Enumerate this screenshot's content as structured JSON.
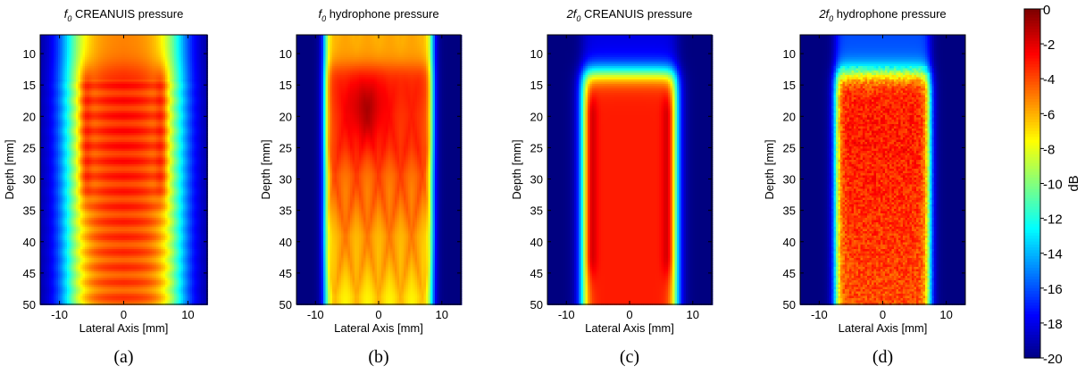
{
  "figure": {
    "shared_xlabel": "Lateral Axis [mm]",
    "shared_ylabel": "Depth [mm]"
  },
  "chart_data": [
    {
      "type": "heatmap",
      "panel_label": "(a)",
      "title_prefix": "f",
      "title_subscript": "0",
      "title_rest": " CREANUIS pressure",
      "xlabel": "Lateral Axis [mm]",
      "ylabel": "Depth [mm]",
      "xlim": [
        -13,
        13
      ],
      "ylim": [
        7,
        50
      ],
      "y_reversed": true,
      "xticks": [
        -10,
        0,
        10
      ],
      "yticks": [
        10,
        15,
        20,
        25,
        30,
        35,
        40,
        45,
        50
      ],
      "colormap": "jet",
      "clim": [
        -20,
        0
      ],
      "field": {
        "beam_halfwidth_mm": 8.5,
        "edge_softness_mm": 3.5,
        "hot_edges": true,
        "hot_edge_pos_mm": 6,
        "hot_depth_range_mm": [
          16,
          30
        ],
        "top_value_db": -5,
        "top_depth_mm": 12,
        "axial_ripples": true,
        "grating_lobes": false,
        "speckle": false,
        "core_value_db": -3,
        "deep_value_db": -4
      }
    },
    {
      "type": "heatmap",
      "panel_label": "(b)",
      "title_prefix": "f",
      "title_subscript": "0",
      "title_rest": " hydrophone pressure",
      "xlabel": "Lateral Axis [mm]",
      "ylabel": "Depth [mm]",
      "xlim": [
        -13,
        13
      ],
      "ylim": [
        7,
        50
      ],
      "y_reversed": true,
      "xticks": [
        -10,
        0,
        10
      ],
      "yticks": [
        10,
        15,
        20,
        25,
        30,
        35,
        40,
        45,
        50
      ],
      "colormap": "jet",
      "clim": [
        -20,
        0
      ],
      "field": {
        "beam_halfwidth_mm": 8.5,
        "edge_softness_mm": 0.8,
        "hot_edges": false,
        "hot_center_depth_mm": 19,
        "top_value_db": -6,
        "top_depth_mm": 12,
        "axial_ripples": false,
        "grating_lobes": true,
        "speckle": false,
        "core_value_db": -3,
        "deep_value_db": -6
      }
    },
    {
      "type": "heatmap",
      "panel_label": "(c)",
      "title_prefix": "2f",
      "title_subscript": "0",
      "title_rest": " CREANUIS pressure",
      "xlabel": "Lateral Axis [mm]",
      "ylabel": "Depth [mm]",
      "xlim": [
        -13,
        13
      ],
      "ylim": [
        7,
        50
      ],
      "y_reversed": true,
      "xticks": [
        -10,
        0,
        10
      ],
      "yticks": [
        10,
        15,
        20,
        25,
        30,
        35,
        40,
        45,
        50
      ],
      "colormap": "jet",
      "clim": [
        -20,
        0
      ],
      "field": {
        "beam_halfwidth_mm": 7.4,
        "edge_softness_mm": 1.2,
        "hot_edges": true,
        "hot_edge_pos_mm": 6.2,
        "hot_depth_range_mm": [
          20,
          42
        ],
        "top_value_db": -18,
        "top_depth_mm": 13,
        "axial_ripples": false,
        "grating_lobes": false,
        "speckle": false,
        "core_value_db": -3,
        "deep_value_db": -3
      }
    },
    {
      "type": "heatmap",
      "panel_label": "(d)",
      "title_prefix": "2f",
      "title_subscript": "0",
      "title_rest": " hydrophone pressure",
      "xlabel": "Lateral Axis [mm]",
      "ylabel": "Depth [mm]",
      "xlim": [
        -13,
        13
      ],
      "ylim": [
        7,
        50
      ],
      "y_reversed": true,
      "xticks": [
        -10,
        0,
        10
      ],
      "yticks": [
        10,
        15,
        20,
        25,
        30,
        35,
        40,
        45,
        50
      ],
      "colormap": "jet",
      "clim": [
        -20,
        0
      ],
      "field": {
        "beam_halfwidth_mm": 7.4,
        "edge_softness_mm": 0.9,
        "hot_edges": false,
        "top_value_db": -16,
        "top_depth_mm": 13,
        "axial_ripples": false,
        "grating_lobes": false,
        "speckle": true,
        "core_value_db": -3,
        "deep_value_db": -4
      }
    }
  ],
  "colorbar": {
    "label": "dB",
    "ticks": [
      0,
      -2,
      -4,
      -6,
      -8,
      -10,
      -12,
      -14,
      -16,
      -18,
      -20
    ],
    "tick_labels": [
      "0",
      "-2",
      "-4",
      "-6",
      "-8",
      "-10",
      "-12",
      "-14",
      "-16",
      "-18",
      "-20"
    ],
    "clim": [
      -20,
      0
    ],
    "colormap": "jet"
  }
}
